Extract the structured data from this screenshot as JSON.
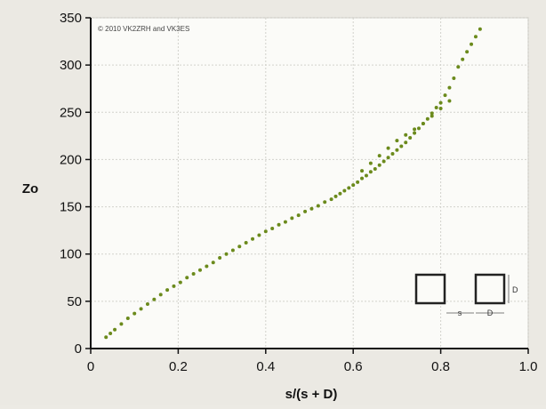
{
  "chart_data": {
    "type": "scatter",
    "copyright": "© 2010 VK2ZRH and VK3ES",
    "xlabel": "s/(s + D)",
    "ylabel": "Zo",
    "xlim": [
      0,
      1.0
    ],
    "ylim": [
      0,
      350
    ],
    "x_ticks": [
      "0",
      "0.2",
      "0.4",
      "0.6",
      "0.8",
      "1.0"
    ],
    "y_ticks": [
      "0",
      "50",
      "100",
      "150",
      "200",
      "250",
      "300",
      "350"
    ],
    "grid": true,
    "marker_color": "#6b8a1c",
    "inset_diagram": {
      "s_label": "s",
      "d_label": "D"
    },
    "x": [
      0.035,
      0.045,
      0.055,
      0.07,
      0.085,
      0.1,
      0.115,
      0.13,
      0.145,
      0.16,
      0.175,
      0.19,
      0.205,
      0.22,
      0.235,
      0.25,
      0.265,
      0.28,
      0.295,
      0.31,
      0.325,
      0.34,
      0.355,
      0.37,
      0.385,
      0.4,
      0.415,
      0.43,
      0.445,
      0.46,
      0.475,
      0.49,
      0.505,
      0.52,
      0.535,
      0.55,
      0.56,
      0.57,
      0.58,
      0.59,
      0.6,
      0.61,
      0.62,
      0.63,
      0.64,
      0.65,
      0.66,
      0.67,
      0.68,
      0.69,
      0.7,
      0.71,
      0.72,
      0.73,
      0.74,
      0.75,
      0.76,
      0.77,
      0.78,
      0.79,
      0.8,
      0.81,
      0.82,
      0.83,
      0.84,
      0.85,
      0.86,
      0.87,
      0.88,
      0.89,
      0.62,
      0.64,
      0.66,
      0.68,
      0.7,
      0.72,
      0.74,
      0.76,
      0.78,
      0.8,
      0.82
    ],
    "y": [
      12,
      16,
      20,
      26,
      32,
      37,
      42,
      47,
      52,
      57,
      62,
      66,
      70,
      75,
      79,
      83,
      87,
      91,
      96,
      100,
      104,
      108,
      112,
      116,
      120,
      124,
      127,
      131,
      134,
      138,
      141,
      145,
      148,
      151,
      155,
      158,
      161,
      164,
      167,
      170,
      173,
      176,
      180,
      183,
      187,
      190,
      194,
      198,
      202,
      206,
      210,
      214,
      218,
      223,
      228,
      233,
      238,
      243,
      249,
      255,
      260,
      268,
      276,
      286,
      298,
      306,
      314,
      322,
      330,
      338,
      188,
      196,
      204,
      212,
      220,
      226,
      232,
      238,
      246,
      254,
      262
    ]
  }
}
